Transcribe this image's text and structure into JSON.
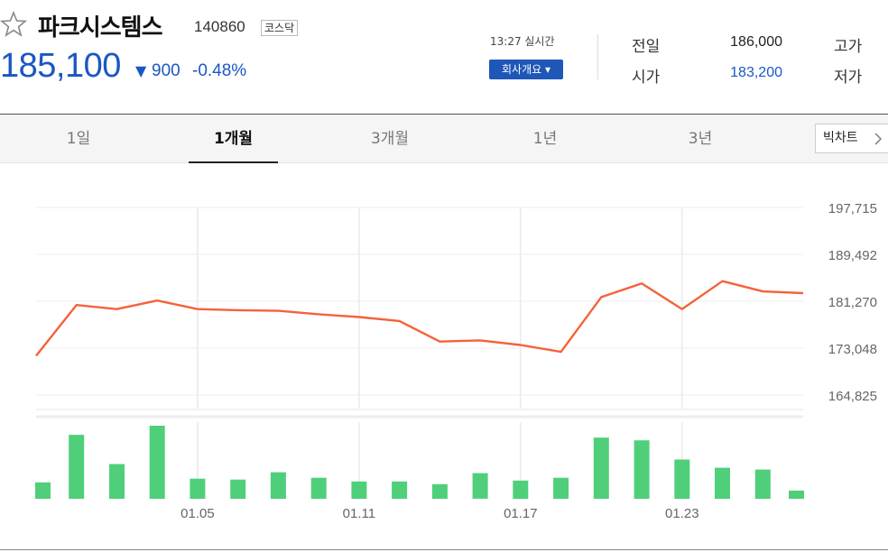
{
  "stock": {
    "name": "파크시스템스",
    "code": "140860",
    "market": "코스닥",
    "price": "185,100",
    "change_arrow": "▼",
    "change": "900",
    "change_rate": "-0.48%",
    "time": "13:27 실시간",
    "company_button": "회사개요 ▾",
    "prev_label": "전일",
    "prev_value": "186,000",
    "open_label": "시가",
    "open_value": "183,200",
    "high_label": "고가",
    "low_label": "저가"
  },
  "colors": {
    "down": "#1a57c5",
    "line": "#f4623a",
    "volume": "#4fcf7a"
  },
  "tabs": [
    "1일",
    "1개월",
    "3개월",
    "1년",
    "3년"
  ],
  "active_tab": "1개월",
  "big_chart_label": "빅차트",
  "chart_data": {
    "type": "line",
    "y_ticks": [
      "197,715",
      "189,492",
      "181,270",
      "173,048",
      "164,825"
    ],
    "ylim": [
      164825,
      197715
    ],
    "x_ticks": [
      "01.05",
      "01.11",
      "01.17",
      "01.23"
    ],
    "price_series": [
      171700,
      180600,
      179900,
      181400,
      179900,
      179700,
      179600,
      179000,
      178500,
      177800,
      174200,
      174400,
      173600,
      172400,
      182000,
      184400,
      179900,
      184800,
      183000,
      182700
    ],
    "volume_series": [
      18,
      70,
      38,
      80,
      22,
      21,
      29,
      23,
      19,
      19,
      16,
      28,
      20,
      23,
      67,
      64,
      43,
      34,
      32,
      9
    ]
  }
}
